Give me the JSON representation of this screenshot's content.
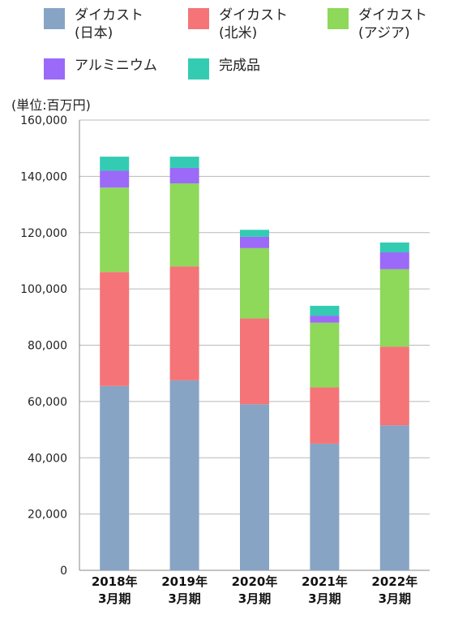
{
  "unit_label": "(単位:百万円)",
  "chart_data": {
    "type": "bar",
    "stacked": true,
    "categories": [
      "2018年\n3月期",
      "2019年\n3月期",
      "2020年\n3月期",
      "2021年\n3月期",
      "2022年\n3月期"
    ],
    "series": [
      {
        "name": "ダイカスト\n(日本)",
        "color": "#87a4c4",
        "values": [
          65500,
          67500,
          59000,
          45000,
          51500
        ]
      },
      {
        "name": "ダイカスト\n(北米)",
        "color": "#f47477",
        "values": [
          40500,
          40500,
          30500,
          20000,
          28000
        ]
      },
      {
        "name": "ダイカスト\n(アジア)",
        "color": "#8ed85a",
        "values": [
          30000,
          29500,
          25000,
          23000,
          27500
        ]
      },
      {
        "name": "アルミニウム",
        "color": "#9b6af8",
        "values": [
          6000,
          5500,
          4000,
          2500,
          6000
        ]
      },
      {
        "name": "完成品",
        "color": "#33ccb3",
        "values": [
          5000,
          4000,
          2500,
          3500,
          3500
        ]
      }
    ],
    "yticks": [
      "0",
      "20,000",
      "40,000",
      "60,000",
      "80,000",
      "100,000",
      "120,000",
      "140,000",
      "160,000"
    ],
    "ylim": [
      0,
      160000
    ],
    "grid": true,
    "legend_position": "top"
  }
}
